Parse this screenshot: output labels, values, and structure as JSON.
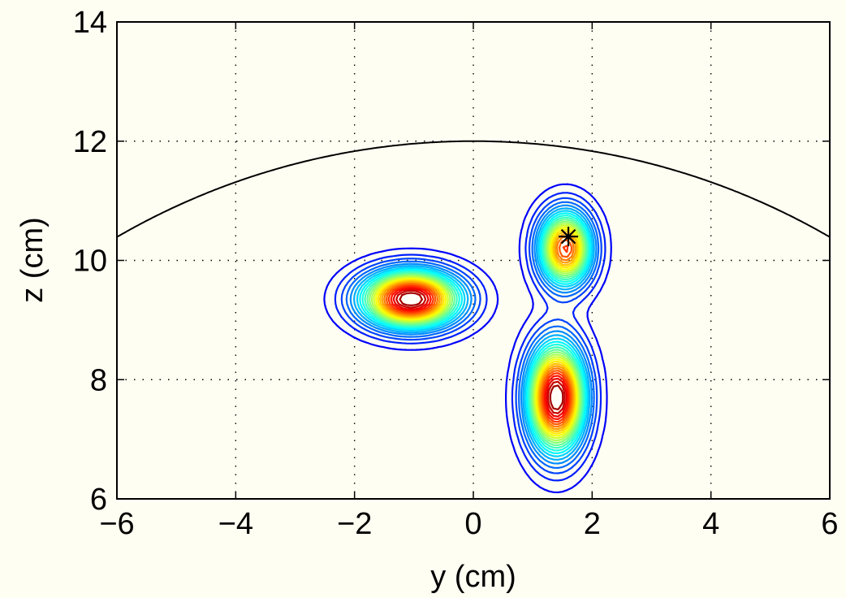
{
  "chart_data": {
    "type": "contour",
    "xlabel": "y (cm)",
    "ylabel": "z (cm)",
    "xlim": [
      -6,
      6
    ],
    "ylim": [
      6,
      14
    ],
    "xticks": [
      -6,
      -4,
      -2,
      0,
      2,
      4,
      6
    ],
    "yticks": [
      6,
      8,
      10,
      12,
      14
    ],
    "xtick_labels": [
      "−6",
      "−4",
      "−2",
      "0",
      "2",
      "4",
      "6"
    ],
    "ytick_labels": [
      "6",
      "8",
      "10",
      "12",
      "14"
    ],
    "grid": "dotted",
    "colormap": "jet",
    "boundary_circle": {
      "center_y": 0,
      "center_z": 0,
      "radius": 12
    },
    "peaks": [
      {
        "y": -1.05,
        "z": 9.35,
        "amplitude": 1.0,
        "sigma_y": 0.55,
        "sigma_z": 0.32
      },
      {
        "y": 1.4,
        "z": 7.7,
        "amplitude": 1.0,
        "sigma_y": 0.32,
        "sigma_z": 0.6
      },
      {
        "y": 1.55,
        "z": 10.2,
        "amplitude": 0.8,
        "sigma_y": 0.3,
        "sigma_z": 0.42
      }
    ],
    "marker": {
      "symbol": "asterisk",
      "y": 1.6,
      "z": 10.4
    }
  }
}
